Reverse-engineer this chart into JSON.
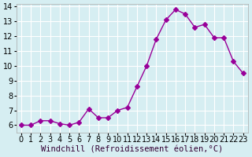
{
  "x": [
    0,
    1,
    2,
    3,
    4,
    5,
    6,
    7,
    8,
    9,
    10,
    11,
    12,
    13,
    14,
    15,
    16,
    17,
    18,
    19,
    20,
    21,
    22,
    23
  ],
  "y": [
    6.0,
    6.0,
    6.3,
    6.3,
    6.1,
    6.0,
    6.2,
    7.1,
    6.5,
    6.5,
    7.0,
    7.2,
    8.6,
    10.0,
    11.8,
    13.1,
    13.8,
    13.5,
    12.6,
    12.8,
    11.9,
    11.9,
    10.3,
    9.5
  ],
  "line_color": "#990099",
  "marker": "D",
  "marker_size": 3,
  "bg_color": "#d6eef2",
  "grid_color": "#ffffff",
  "xlabel": "Windchill (Refroidissement éolien,°C)",
  "ylim": [
    5.5,
    14.2
  ],
  "xlim": [
    -0.5,
    23.5
  ],
  "yticks": [
    6,
    7,
    8,
    9,
    10,
    11,
    12,
    13,
    14
  ],
  "xticks": [
    0,
    1,
    2,
    3,
    4,
    5,
    6,
    7,
    8,
    9,
    10,
    11,
    12,
    13,
    14,
    15,
    16,
    17,
    18,
    19,
    20,
    21,
    22,
    23
  ],
  "tick_label_fontsize": 7,
  "xlabel_fontsize": 7.5
}
